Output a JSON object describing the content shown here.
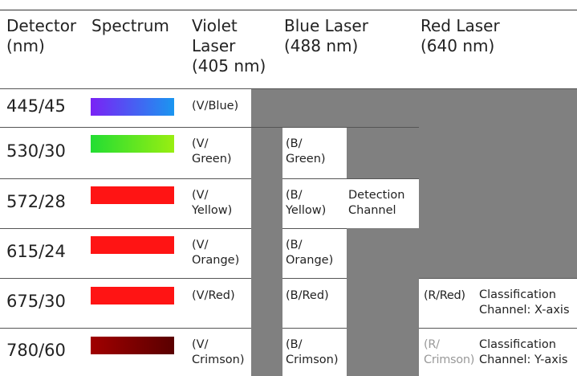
{
  "table": {
    "header": [
      "Detector\n(nm)",
      "Spectrum",
      "Violet\nLaser\n(405 nm)",
      "Blue Laser\n(488 nm)",
      "Red Laser\n(640 nm)"
    ],
    "rows": [
      {
        "detector": "445/45",
        "violet": "(V/Blue)"
      },
      {
        "detector": "530/30",
        "violet": "(V/\nGreen)",
        "blue": "(B/\nGreen)"
      },
      {
        "detector": "572/28",
        "violet": "(V/\nYellow)",
        "blue": "(B/\nYellow)",
        "detection": "Detection\nChannel"
      },
      {
        "detector": "615/24",
        "violet": "(V/\nOrange)",
        "blue": "(B/\nOrange)"
      },
      {
        "detector": "675/30",
        "violet": "(V/Red)",
        "blue": "(B/Red)",
        "red": "(R/Red)",
        "red_note": "Classification\nChannel: X-axis"
      },
      {
        "detector": "780/60",
        "violet": "(V/\nCrimson)",
        "blue": "(B/\nCrimson)",
        "red": "(R/\nCrimson)",
        "red_note": "Classification\nChannel: Y-axis"
      }
    ]
  }
}
